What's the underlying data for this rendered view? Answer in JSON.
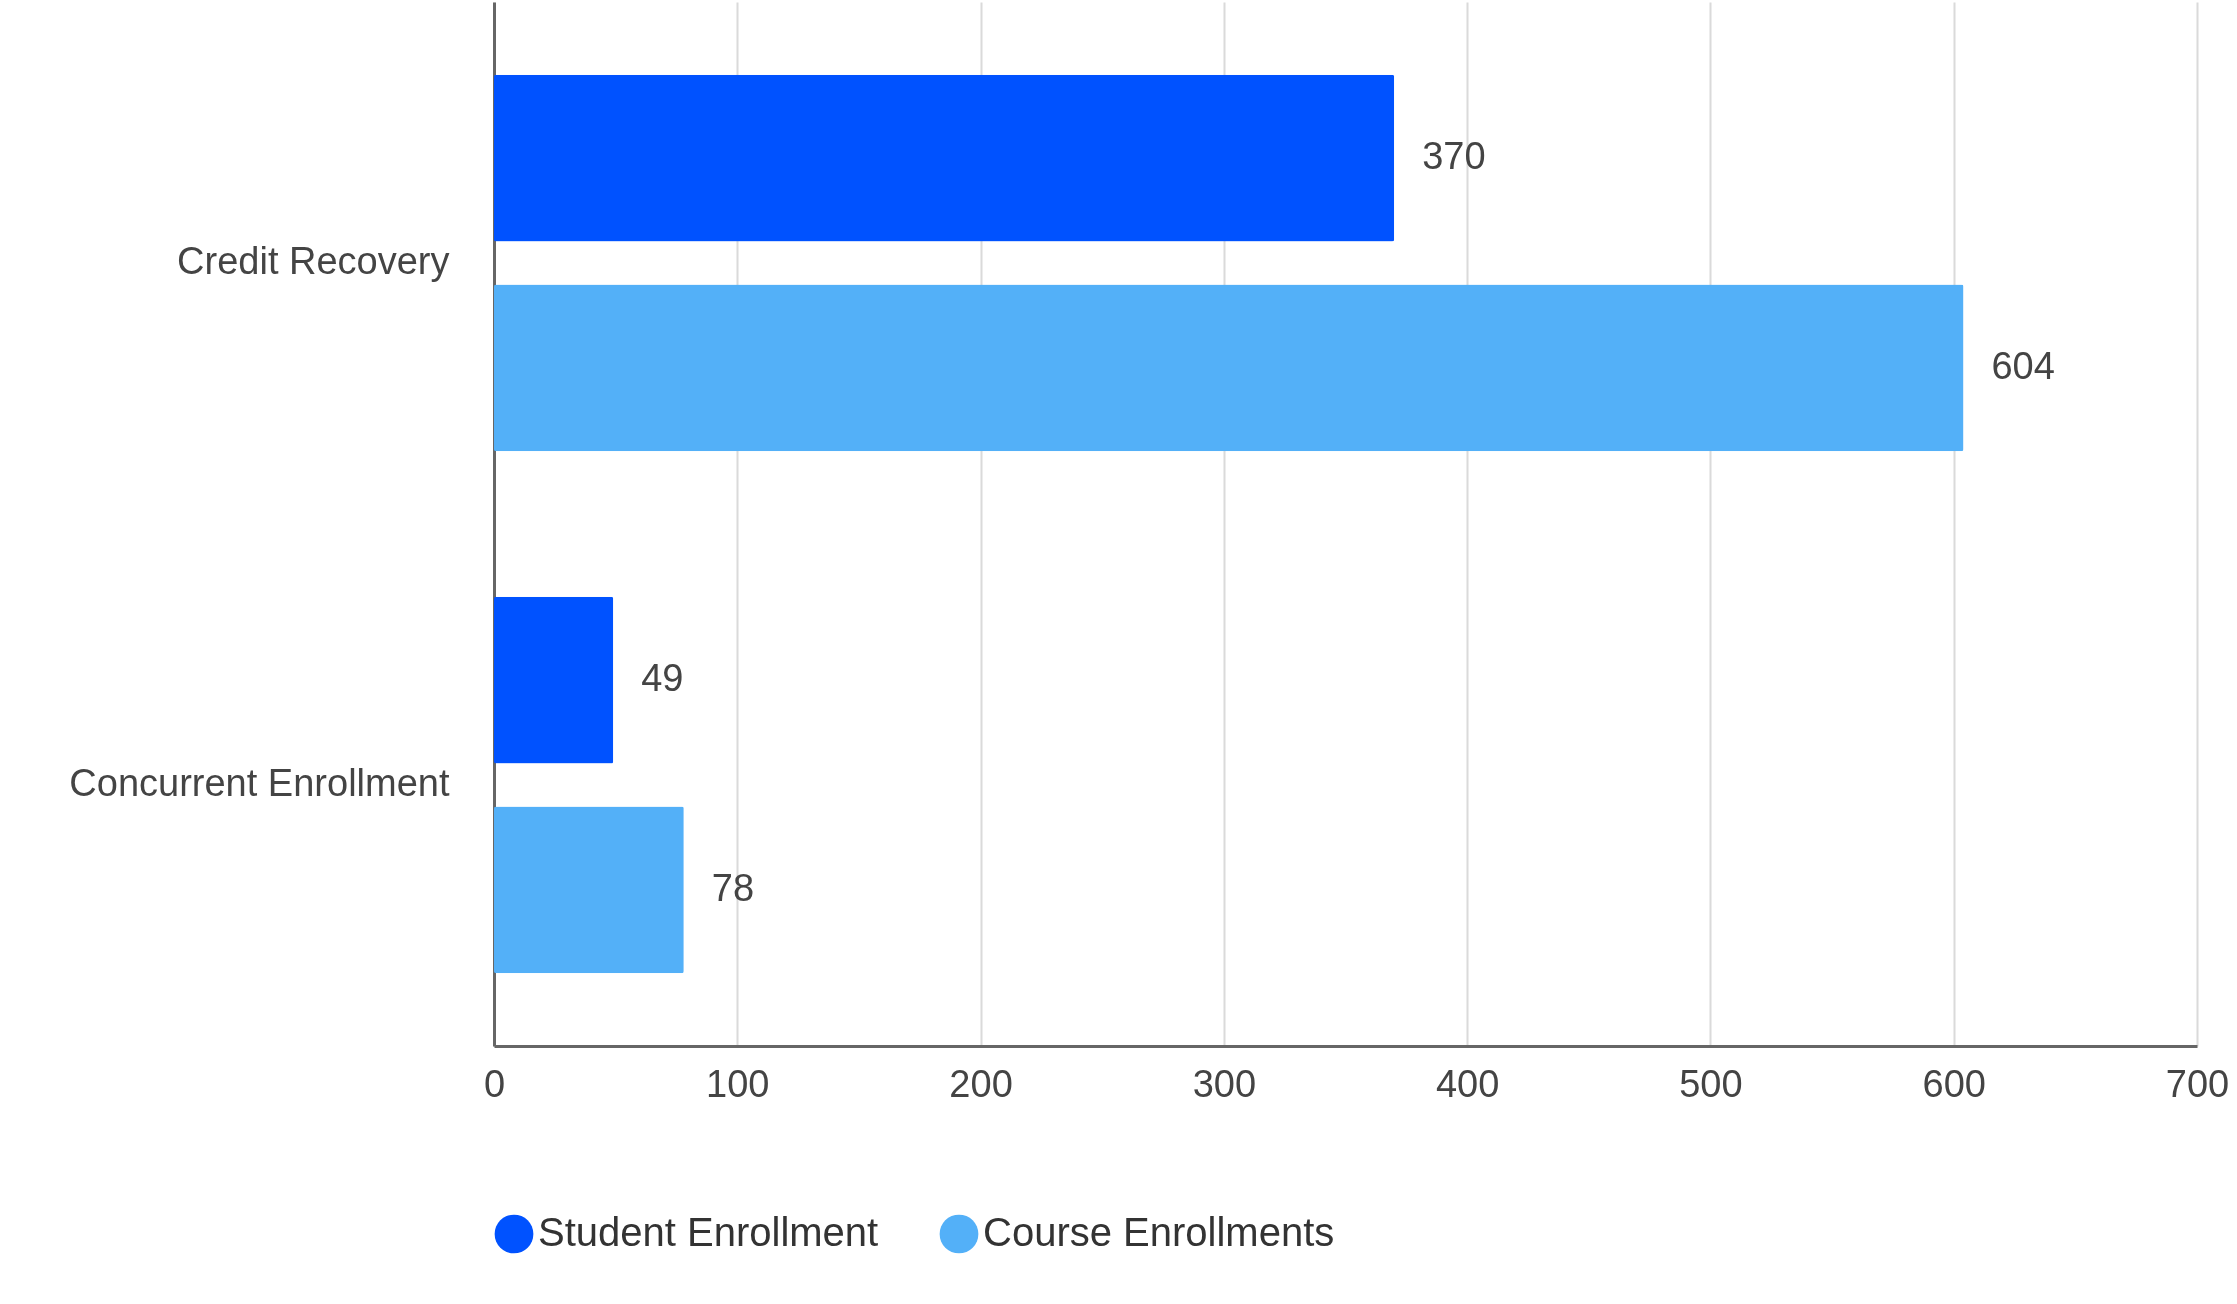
{
  "chart_data": {
    "type": "bar",
    "orientation": "horizontal",
    "categories": [
      "Credit Recovery",
      "Concurrent Enrollment"
    ],
    "series": [
      {
        "name": "Student Enrollment",
        "color": "#0052ff",
        "values": [
          370,
          49
        ]
      },
      {
        "name": "Course Enrollments",
        "color": "#53b0f8",
        "values": [
          604,
          78
        ]
      }
    ],
    "xlim": [
      0,
      700
    ],
    "xticks": [
      0,
      100,
      200,
      300,
      400,
      500,
      600,
      700
    ],
    "grid": "x",
    "legend": "bottom",
    "data_labels": true
  }
}
